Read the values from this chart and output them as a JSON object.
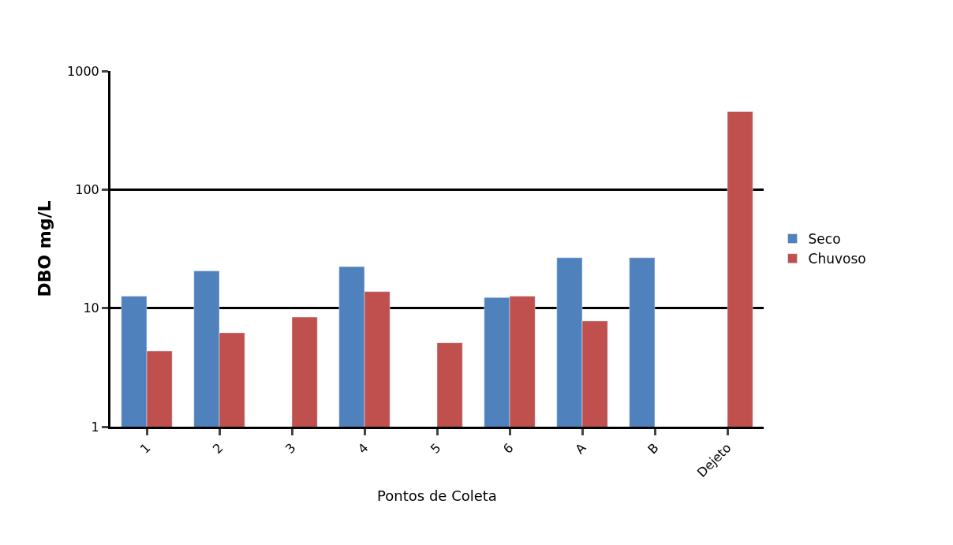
{
  "chart_data": {
    "type": "bar",
    "xlabel": "Pontos de Coleta",
    "ylabel": "DBO mg/L",
    "categories": [
      "1",
      "2",
      "3",
      "4",
      "5",
      "6",
      "A",
      "B",
      "Dejeto"
    ],
    "series": [
      {
        "name": "Seco",
        "color": "#4f81bd",
        "values": [
          12.6,
          20.6,
          null,
          22.4,
          null,
          12.3,
          26.6,
          26.6,
          null
        ]
      },
      {
        "name": "Chuvoso",
        "color": "#c0504d",
        "values": [
          4.35,
          6.2,
          8.4,
          13.8,
          5.1,
          12.6,
          7.8,
          null,
          454
        ]
      }
    ],
    "log": "y",
    "ylim": [
      1,
      1000
    ],
    "yticks": [
      1,
      10,
      100,
      1000
    ],
    "grid": "y",
    "legend": "right"
  }
}
